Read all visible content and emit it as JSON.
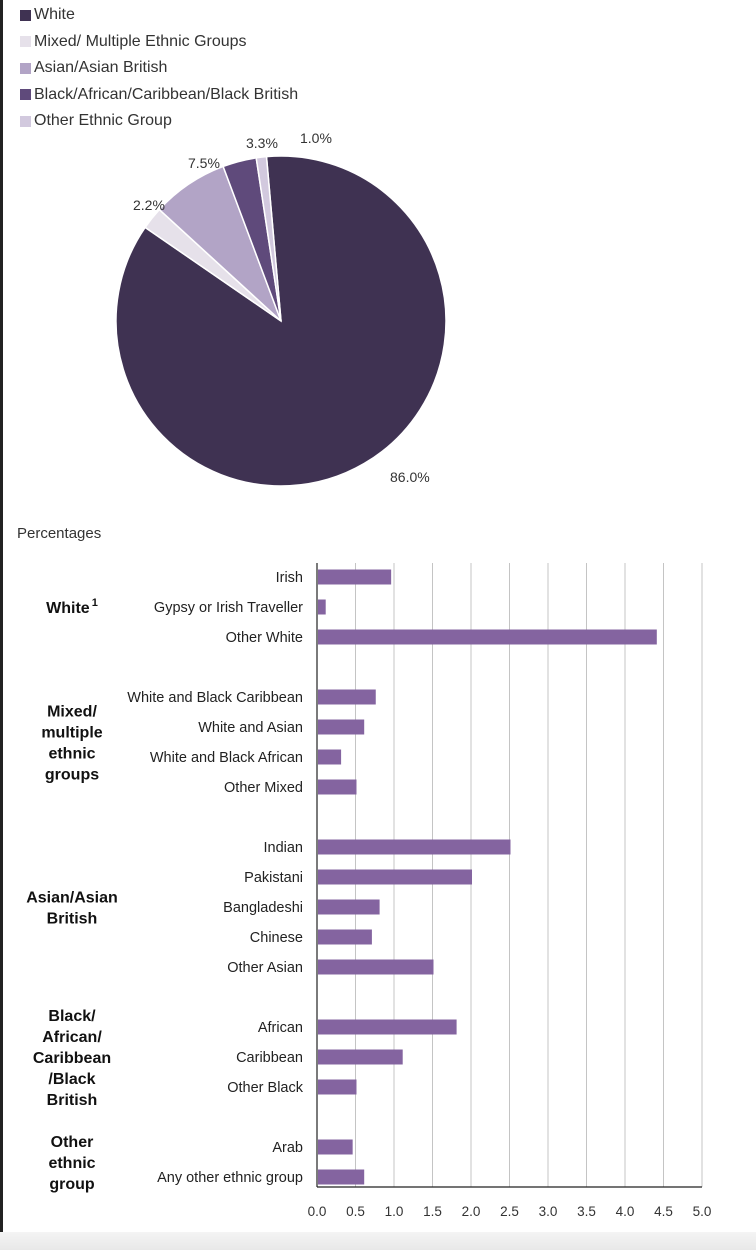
{
  "chart_data": [
    {
      "type": "pie",
      "legend_position": "top-left",
      "colors": [
        "#3f3252",
        "#e6e1ea",
        "#b2a4c6",
        "#5f4a7b",
        "#d2c9de"
      ],
      "slices": [
        {
          "name": "White",
          "value": 86.0,
          "label": "86.0%"
        },
        {
          "name": "Mixed/ Multiple Ethnic Groups",
          "value": 2.2,
          "label": "2.2%"
        },
        {
          "name": "Asian/Asian British",
          "value": 7.5,
          "label": "7.5%"
        },
        {
          "name": "Black/African/Caribbean/Black British",
          "value": 3.3,
          "label": "3.3%"
        },
        {
          "name": "Other Ethnic Group",
          "value": 1.0,
          "label": "1.0%"
        }
      ]
    },
    {
      "type": "bar",
      "orientation": "horizontal",
      "title": "Percentages",
      "bar_color": "#8464a0",
      "grid": true,
      "xlim": [
        0,
        5
      ],
      "ticks": [
        "0.0",
        "0.5",
        "1.0",
        "1.5",
        "2.0",
        "2.5",
        "3.0",
        "3.5",
        "4.0",
        "4.5",
        "5.0"
      ],
      "groups": [
        {
          "label": [
            "White"
          ],
          "superscript": "1",
          "items": [
            {
              "label": "Irish",
              "value": 0.95
            },
            {
              "label": "Gypsy or Irish Traveller",
              "value": 0.1
            },
            {
              "label": "Other White",
              "value": 4.4
            }
          ]
        },
        {
          "label": [
            "Mixed/",
            "multiple",
            "ethnic",
            "groups"
          ],
          "items": [
            {
              "label": "White and Black Caribbean",
              "value": 0.75
            },
            {
              "label": "White and Asian",
              "value": 0.6
            },
            {
              "label": "White and Black African",
              "value": 0.3
            },
            {
              "label": "Other Mixed",
              "value": 0.5
            }
          ]
        },
        {
          "label": [
            "Asian/Asian",
            "British"
          ],
          "items": [
            {
              "label": "Indian",
              "value": 2.5
            },
            {
              "label": "Pakistani",
              "value": 2.0
            },
            {
              "label": "Bangladeshi",
              "value": 0.8
            },
            {
              "label": "Chinese",
              "value": 0.7
            },
            {
              "label": "Other Asian",
              "value": 1.5
            }
          ]
        },
        {
          "label": [
            "Black/",
            "African/",
            "Caribbean",
            "/Black",
            "British"
          ],
          "items": [
            {
              "label": "African",
              "value": 1.8
            },
            {
              "label": "Caribbean",
              "value": 1.1
            },
            {
              "label": "Other Black",
              "value": 0.5
            }
          ]
        },
        {
          "label": [
            "Other",
            "ethnic",
            "group"
          ],
          "items": [
            {
              "label": "Arab",
              "value": 0.45
            },
            {
              "label": "Any other ethnic group",
              "value": 0.6
            }
          ]
        }
      ]
    }
  ]
}
